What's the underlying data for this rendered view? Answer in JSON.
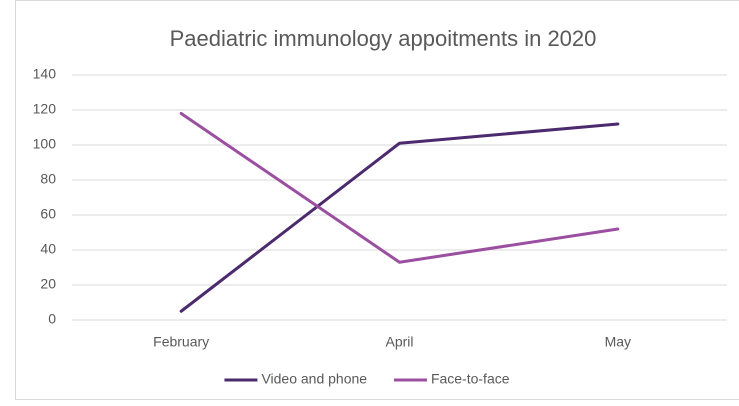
{
  "chart_data": {
    "type": "line",
    "title": "Paediatric immunology appoitments in 2020",
    "categories": [
      "February",
      "April",
      "May"
    ],
    "series": [
      {
        "name": "Video and phone",
        "color": "#4b2a6e",
        "values": [
          5,
          101,
          112
        ]
      },
      {
        "name": "Face-to-face",
        "color": "#9b4fa0",
        "values": [
          118,
          33,
          52
        ]
      }
    ],
    "ylim": [
      0,
      140
    ],
    "yticks": [
      0,
      20,
      40,
      60,
      80,
      100,
      120,
      140
    ],
    "grid": true,
    "legend": "bottom"
  }
}
